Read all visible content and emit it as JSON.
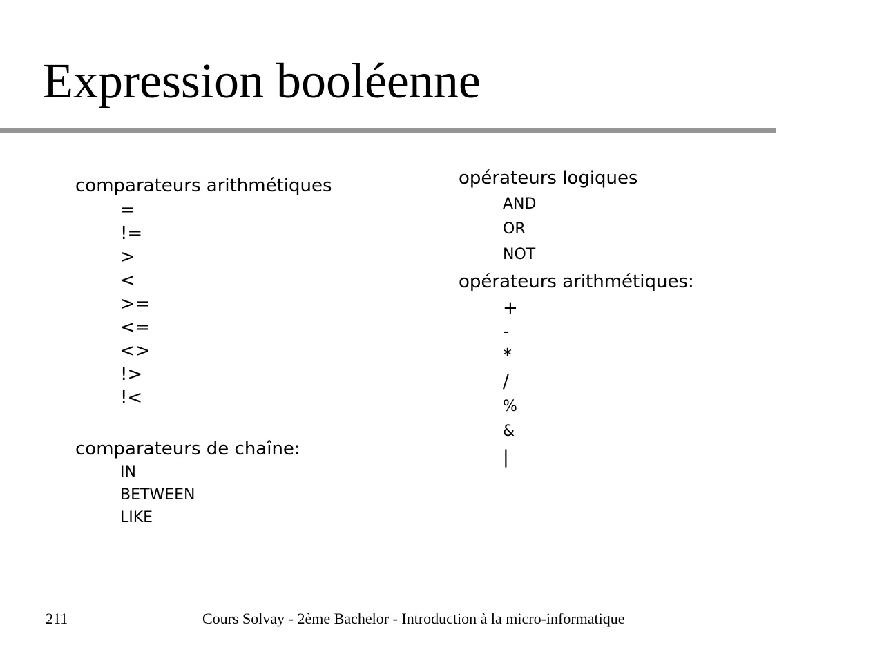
{
  "slide": {
    "title": "Expression booléenne"
  },
  "left_column": {
    "arith_heading": "comparateurs arithmétiques",
    "arith_items": [
      "=",
      "!=",
      ">",
      "<",
      ">=",
      "<=",
      "<>",
      "!>",
      "!<"
    ],
    "string_heading": "comparateurs de chaîne:",
    "string_items": [
      "IN",
      "BETWEEN",
      "LIKE"
    ]
  },
  "right_column": {
    "logic_heading": "opérateurs logiques",
    "logic_items": [
      "AND",
      "OR",
      "NOT"
    ],
    "arith_ops_heading": "opérateurs arithmétiques:",
    "arith_ops_items": [
      "+",
      "-",
      "*",
      "/",
      "%",
      "&",
      "|"
    ]
  },
  "footer": {
    "page_number": "211",
    "course": "Cours Solvay - 2ème Bachelor - Introduction à la micro-informatique"
  }
}
